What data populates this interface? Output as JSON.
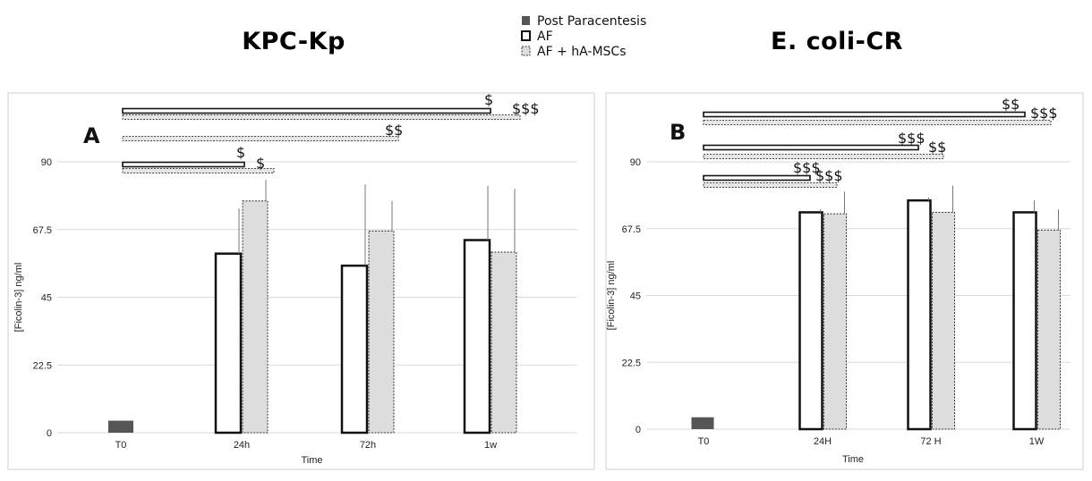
{
  "legend": {
    "items": [
      {
        "label": "Post Paracentesis",
        "style": "post"
      },
      {
        "label": "AF",
        "style": "af"
      },
      {
        "label": "AF + hA-MSCs",
        "style": "msc"
      }
    ]
  },
  "colors": {
    "post": "#555555",
    "af_fill": "#ffffff",
    "msc_fill": "#dddddd",
    "grid": "#d9d9d9"
  },
  "chart_data": [
    {
      "type": "bar",
      "title": "KPC-Kp",
      "panel_label": "A",
      "xlabel": "Time",
      "ylabel": "[Ficolin-3] ng/ml",
      "ylim": [
        0,
        90
      ],
      "yticks": [
        "0",
        "22.5",
        "45",
        "67.5",
        "90"
      ],
      "categories": [
        "T0",
        "24h",
        "72h",
        "1w"
      ],
      "series": [
        {
          "name": "Post Paracentesis",
          "values": [
            4,
            null,
            null,
            null
          ],
          "errors": [
            0,
            null,
            null,
            null
          ]
        },
        {
          "name": "AF",
          "values": [
            null,
            59.5,
            55.5,
            64
          ],
          "errors": [
            null,
            15,
            27,
            18
          ]
        },
        {
          "name": "AF + hA-MSCs",
          "values": [
            null,
            77,
            67,
            60
          ],
          "errors": [
            null,
            7,
            10,
            21
          ]
        }
      ],
      "significance": [
        {
          "label": "$",
          "level": 1
        },
        {
          "label": "$",
          "level": 1
        },
        {
          "label": "$$",
          "level": 2
        },
        {
          "label": "$",
          "level": 3
        },
        {
          "label": "$$$",
          "level": 3
        }
      ]
    },
    {
      "type": "bar",
      "title": "E. coli-CR",
      "panel_label": "B",
      "xlabel": "Time",
      "ylabel": "[Ficolin-3] ng/ml",
      "ylim": [
        0,
        90
      ],
      "yticks": [
        "0",
        "22.5",
        "45",
        "67.5",
        "90"
      ],
      "categories": [
        "T0",
        "24H",
        "72 H",
        "1W"
      ],
      "series": [
        {
          "name": "Post Paracentesis",
          "values": [
            4,
            null,
            null,
            null
          ],
          "errors": [
            0,
            null,
            null,
            null
          ]
        },
        {
          "name": "AF",
          "values": [
            null,
            73,
            77,
            73
          ],
          "errors": [
            null,
            1,
            1,
            4
          ]
        },
        {
          "name": "AF + hA-MSCs",
          "values": [
            null,
            72.5,
            73,
            67
          ],
          "errors": [
            null,
            7.5,
            9,
            7
          ]
        }
      ],
      "significance": [
        {
          "label": "$$$",
          "level": 1
        },
        {
          "label": "$$$",
          "level": 1
        },
        {
          "label": "$$$",
          "level": 2
        },
        {
          "label": "$$",
          "level": 2
        },
        {
          "label": "$$",
          "level": 3
        },
        {
          "label": "$$$",
          "level": 3
        }
      ]
    }
  ]
}
